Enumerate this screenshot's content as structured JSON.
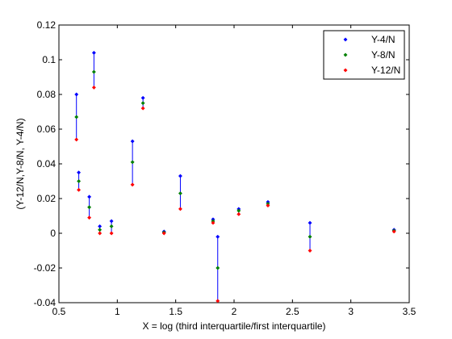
{
  "chart_data": {
    "type": "scatter",
    "title": "",
    "xlabel": "X = log (third interquartile/first interquartile)",
    "ylabel": "(Y-12/N,Y-8/N, Y-4/N)",
    "xlim": [
      0.5,
      3.5
    ],
    "ylim": [
      -0.04,
      0.12
    ],
    "xticks": [
      0.5,
      1,
      1.5,
      2,
      2.5,
      3,
      3.5
    ],
    "xtick_labels": [
      "0.5",
      "1",
      "1.5",
      "2",
      "2.5",
      "3",
      "3.5"
    ],
    "yticks": [
      -0.04,
      -0.02,
      0,
      0.02,
      0.04,
      0.06,
      0.08,
      0.1,
      0.12
    ],
    "ytick_labels": [
      "-0.04",
      "-0.02",
      "0",
      "0.02",
      "0.04",
      "0.06",
      "0.08",
      "0.1",
      "0.12"
    ],
    "grid": false,
    "legend_position": "top-right",
    "x": [
      0.65,
      0.67,
      0.76,
      0.8,
      0.85,
      0.95,
      1.13,
      1.22,
      1.4,
      1.54,
      1.82,
      1.86,
      2.04,
      2.29,
      2.65,
      3.37
    ],
    "series": [
      {
        "name": "Y-4/N",
        "color": "#0000ff",
        "values": [
          0.08,
          0.035,
          0.021,
          0.104,
          0.004,
          0.007,
          0.053,
          0.078,
          0.001,
          0.033,
          0.008,
          -0.002,
          0.014,
          0.018,
          0.006,
          0.002
        ]
      },
      {
        "name": "Y-8/N",
        "color": "#008000",
        "values": [
          0.067,
          0.03,
          0.015,
          0.093,
          0.002,
          0.004,
          0.041,
          0.075,
          0.0005,
          0.023,
          0.007,
          -0.02,
          0.013,
          0.017,
          -0.002,
          0.0015
        ]
      },
      {
        "name": "Y-12/N",
        "color": "#ff0000",
        "values": [
          0.054,
          0.025,
          0.009,
          0.084,
          0.0,
          0.0,
          0.028,
          0.072,
          0.0,
          0.014,
          0.006,
          -0.039,
          0.011,
          0.016,
          -0.01,
          0.001
        ]
      }
    ],
    "stem_color": "#0000ff"
  }
}
